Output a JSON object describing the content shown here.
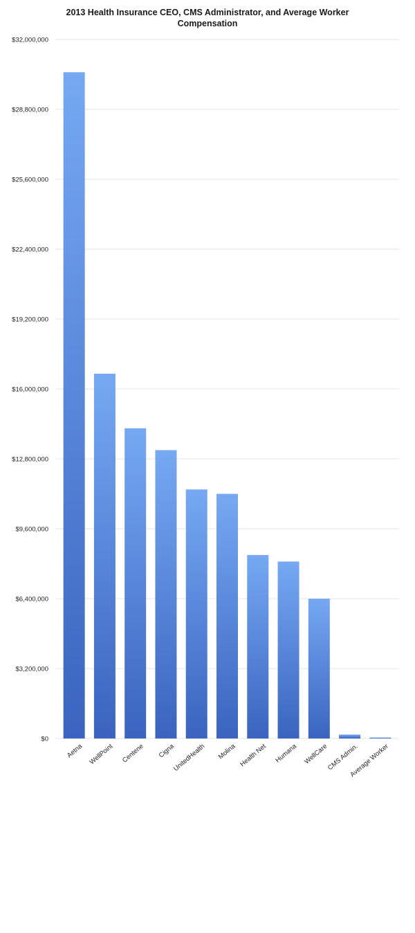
{
  "chart_data": {
    "type": "bar",
    "title_lines": [
      "2013 Health Insurance CEO, CMS Administrator, and Average Worker",
      "Compensation"
    ],
    "xlabel": "",
    "ylabel": "",
    "categories": [
      "Aetna",
      "WellPoint",
      "Centene",
      "Cigna",
      "UnitedHealth",
      "Molina",
      "Health Net",
      "Humana",
      "WellCare",
      "CMS Admin.",
      "Average Worker"
    ],
    "values": [
      30500000,
      16700000,
      14200000,
      13200000,
      11400000,
      11200000,
      8400000,
      8100000,
      6400000,
      180000,
      45000
    ],
    "ylim": [
      0,
      32000000
    ],
    "yticks": [
      0,
      3200000,
      6400000,
      9600000,
      12800000,
      16000000,
      19200000,
      22400000,
      25600000,
      28800000,
      32000000
    ],
    "ytick_labels": [
      "$0",
      "$3,200,000",
      "$6,400,000",
      "$9,600,000",
      "$12,800,000",
      "$16,000,000",
      "$19,200,000",
      "$22,400,000",
      "$25,600,000",
      "$28,800,000",
      "$32,000,000"
    ],
    "grid": true,
    "legend": "none",
    "colors": {
      "bar_top": "#76a8f3",
      "bar_bottom": "#3a64bf",
      "grid": "#e3e3e3"
    }
  }
}
